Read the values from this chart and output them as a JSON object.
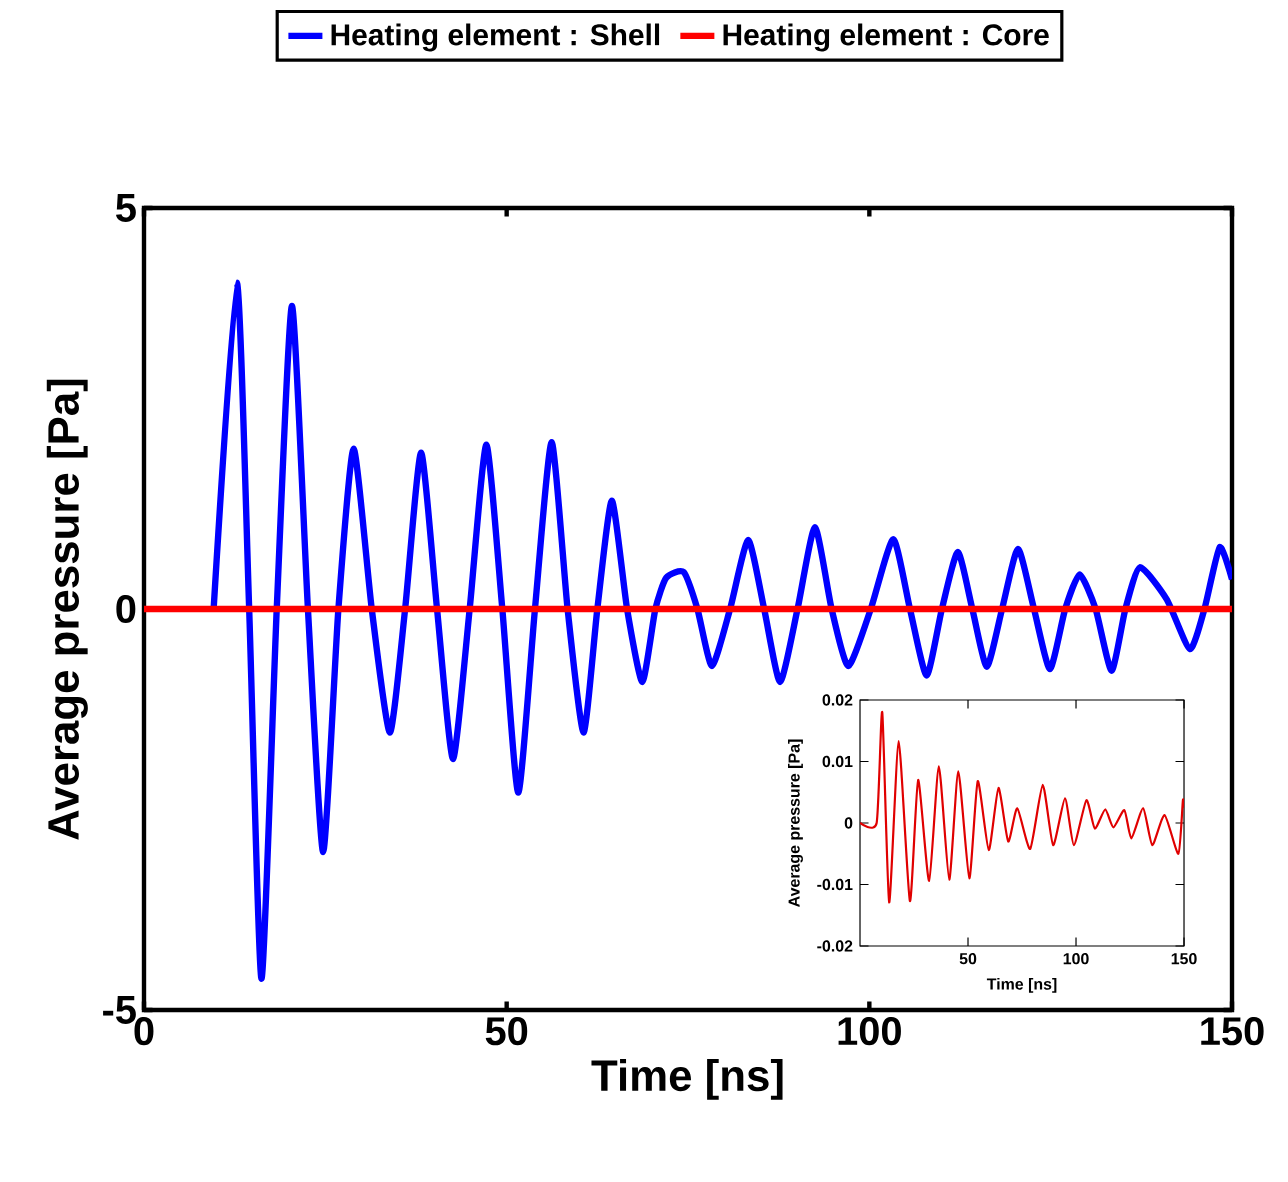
{
  "chart_data": [
    {
      "type": "line",
      "xlabel": "Time [ns]",
      "ylabel": "Average pressure [Pa]",
      "xlim": [
        0,
        150
      ],
      "ylim": [
        -5,
        5
      ],
      "xticks": [
        0,
        50,
        100,
        150
      ],
      "yticks": [
        -5,
        0,
        5
      ],
      "legend": "top",
      "series": [
        {
          "name": "Heating element : Shell",
          "color": "#0000ff",
          "x": [
            9.6,
            12.8,
            14.5,
            16.2,
            18.3,
            20.4,
            22.6,
            24.7,
            26.8,
            28.9,
            31.4,
            33.9,
            36,
            38.2,
            40.4,
            42.6,
            44.9,
            47.2,
            49.4,
            51.6,
            53.9,
            56.2,
            58.4,
            60.6,
            62.5,
            64.5,
            66.6,
            68.7,
            70.5,
            72.0,
            74.4,
            76.3,
            78.3,
            80.8,
            83.3,
            85.5,
            87.7,
            90.1,
            92.5,
            94.8,
            97.1,
            100.2,
            103.3,
            105.6,
            107.9,
            110,
            112.2,
            114.2,
            116.2,
            118.3,
            120.5,
            122.7,
            124.9,
            127,
            129.0,
            131.2,
            133.4,
            135.3,
            137.3,
            141,
            144.2,
            146.2,
            148.3,
            150
          ],
          "values": [
            0,
            4.07,
            0,
            -4.61,
            0,
            3.78,
            0,
            -3.03,
            0,
            2.0,
            0,
            -1.54,
            0,
            1.95,
            0,
            -1.87,
            0,
            2.05,
            0,
            -2.29,
            0,
            2.08,
            0,
            -1.54,
            0,
            1.35,
            0,
            -0.91,
            0,
            0.39,
            0.46,
            0,
            -0.71,
            0,
            0.86,
            0,
            -0.91,
            0,
            1.02,
            0,
            -0.71,
            0,
            0.87,
            0,
            -0.83,
            0,
            0.71,
            0,
            -0.72,
            0,
            0.75,
            0,
            -0.75,
            0,
            0.43,
            0,
            -0.77,
            0,
            0.52,
            0.12,
            -0.5,
            0,
            0.77,
            0.37
          ]
        },
        {
          "name": "Heating element : Core",
          "color": "#ff0000",
          "x": [
            0,
            150
          ],
          "values": [
            0,
            0
          ]
        }
      ]
    },
    {
      "type": "line",
      "xlabel": "Time [ns]",
      "ylabel": "Average pressure [Pa]",
      "xlim": [
        0,
        150
      ],
      "ylim": [
        -0.02,
        0.02
      ],
      "xticks": [
        50,
        100,
        150
      ],
      "yticks": [
        -0.02,
        -0.01,
        0,
        0.01,
        0.02
      ],
      "series": [
        {
          "color": "#e00000",
          "x": [
            0,
            7.7,
            10.3,
            13.5,
            17.9,
            23.1,
            26.9,
            32,
            36.5,
            41.3,
            45.5,
            50.6,
            54.5,
            59.6,
            64.1,
            68.6,
            72.8,
            78.8,
            84.6,
            89.4,
            94.9,
            99,
            104.8,
            108.7,
            113.5,
            117.3,
            122.4,
            125.6,
            131.1,
            135.3,
            141,
            147.4,
            149.5,
            150
          ],
          "values": [
            0,
            0,
            0.018,
            -0.0129,
            0.0133,
            -0.0127,
            0.007,
            -0.0094,
            0.0092,
            -0.0092,
            0.0084,
            -0.009,
            0.0068,
            -0.0044,
            0.0057,
            -0.003,
            0.0024,
            -0.0042,
            0.0062,
            -0.0036,
            0.004,
            -0.0036,
            0.0037,
            -0.0009,
            0.0022,
            -0.0007,
            0.0021,
            -0.0025,
            0.0024,
            -0.0036,
            0.0013,
            -0.005,
            0.0037,
            0.0025
          ]
        }
      ]
    }
  ]
}
